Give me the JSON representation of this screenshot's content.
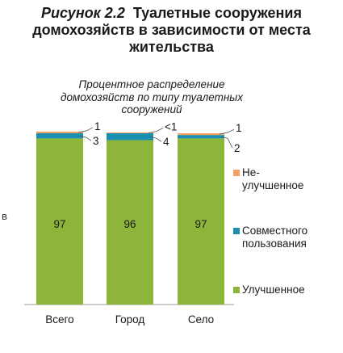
{
  "figure": {
    "number": "Рисунок 2.2",
    "title": "Туалетные сооружения домохозяйств в зависимости от места жительства"
  },
  "edge_text": "в",
  "chart_data": {
    "type": "bar",
    "stacked": true,
    "subtitle": "Процентное распределение домохозяйств по типу туалетных сооружений",
    "categories": [
      "Всего",
      "Город",
      "Село"
    ],
    "series": [
      {
        "name": "Улучшенное",
        "color": "#8db53a",
        "values": [
          97,
          96,
          97
        ],
        "labels": [
          "97",
          "96",
          "97"
        ]
      },
      {
        "name": "Совместного пользования",
        "color": "#1a8fb0",
        "values": [
          3,
          4,
          2
        ],
        "labels": [
          "3",
          "4",
          "2"
        ]
      },
      {
        "name": "Не-улучшенное",
        "color": "#f2a064",
        "values": [
          1,
          0.5,
          1
        ],
        "labels": [
          "1",
          "<1",
          "1"
        ]
      }
    ],
    "ylim": [
      0,
      100
    ],
    "grid": false,
    "legend": "right"
  }
}
